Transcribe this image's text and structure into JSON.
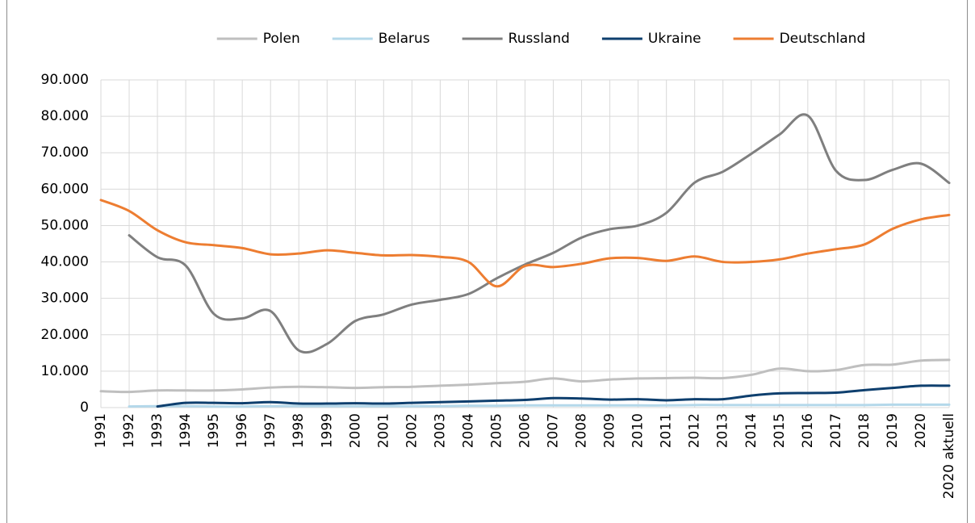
{
  "chart_data": {
    "type": "line",
    "categories": [
      "1991",
      "1992",
      "1993",
      "1994",
      "1995",
      "1996",
      "1997",
      "1998",
      "1999",
      "2000",
      "2001",
      "2002",
      "2003",
      "2004",
      "2005",
      "2006",
      "2007",
      "2008",
      "2009",
      "2010",
      "2011",
      "2012",
      "2013",
      "2014",
      "2015",
      "2016",
      "2017",
      "2018",
      "2019",
      "2020",
      "2020 aktuell"
    ],
    "series": [
      {
        "name": "Polen",
        "color": "#bfbfbf",
        "values": [
          4500,
          4300,
          4700,
          4700,
          4700,
          5000,
          5500,
          5700,
          5600,
          5400,
          5600,
          5700,
          6000,
          6300,
          6700,
          7100,
          8000,
          7200,
          7700,
          8000,
          8100,
          8200,
          8100,
          9000,
          10700,
          10000,
          10300,
          11700,
          11800,
          12900,
          13100
        ]
      },
      {
        "name": "Belarus",
        "color": "#b4d8ea",
        "values": [
          null,
          300,
          400,
          400,
          300,
          300,
          400,
          400,
          400,
          400,
          400,
          400,
          400,
          500,
          500,
          600,
          600,
          600,
          600,
          600,
          600,
          700,
          700,
          700,
          700,
          700,
          700,
          700,
          800,
          800,
          800
        ]
      },
      {
        "name": "Russland",
        "color": "#7f7f7f",
        "values": [
          null,
          47300,
          41300,
          39000,
          25700,
          24500,
          26500,
          15700,
          17500,
          23800,
          25600,
          28300,
          29600,
          31200,
          35500,
          39300,
          42500,
          46700,
          49000,
          50000,
          53500,
          61800,
          64800,
          69700,
          75000,
          80200,
          65000,
          62500,
          65300,
          67000,
          61700
        ]
      },
      {
        "name": "Ukraine",
        "color": "#0e3f6e",
        "values": [
          null,
          null,
          300,
          1300,
          1300,
          1200,
          1500,
          1100,
          1100,
          1200,
          1100,
          1300,
          1500,
          1700,
          1900,
          2100,
          2600,
          2500,
          2200,
          2300,
          2000,
          2300,
          2300,
          3300,
          3900,
          4000,
          4100,
          4800,
          5400,
          6000,
          6000
        ]
      },
      {
        "name": "Deutschland",
        "color": "#ed7d31",
        "values": [
          57000,
          54000,
          48700,
          45400,
          44600,
          43800,
          42100,
          42300,
          43200,
          42500,
          41800,
          41900,
          41400,
          40000,
          33300,
          38900,
          38600,
          39500,
          41000,
          41100,
          40300,
          41500,
          40000,
          40000,
          40700,
          42300,
          43500,
          44800,
          49100,
          51700,
          52900
        ]
      }
    ],
    "ylim": [
      0,
      90000
    ],
    "yticks": [
      0,
      {
        "value": 10000,
        "label": "10.000"
      },
      {
        "value": 20000,
        "label": "20.000"
      },
      {
        "value": 30000,
        "label": "30.000"
      },
      {
        "value": 40000,
        "label": "40.000"
      },
      {
        "value": 50000,
        "label": "50.000"
      },
      {
        "value": 60000,
        "label": "60.000"
      },
      {
        "value": 70000,
        "label": "70.000"
      },
      {
        "value": 80000,
        "label": "80.000"
      },
      {
        "value": 90000,
        "label": "90.000"
      }
    ],
    "grid": true,
    "legend": "top"
  }
}
